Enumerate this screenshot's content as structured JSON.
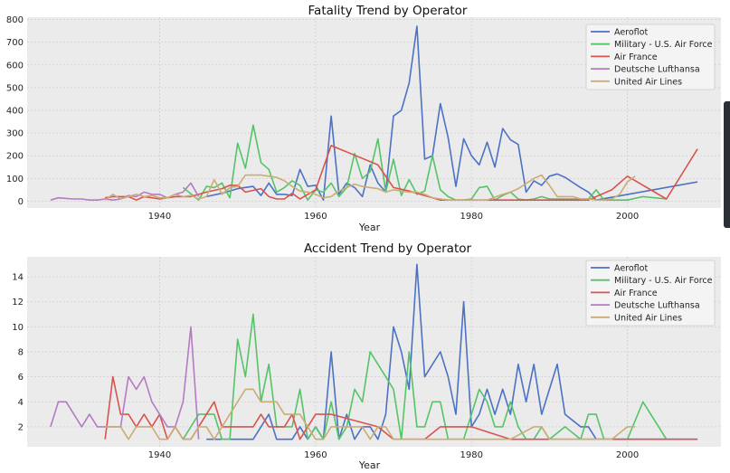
{
  "chart_data": [
    {
      "type": "line",
      "title": "Fatality Trend by Operator",
      "xlabel": "Year",
      "ylabel": "",
      "xlim": [
        1923,
        2012
      ],
      "ylim": [
        -30,
        810
      ],
      "xticks": [
        1940,
        1960,
        1980,
        2000
      ],
      "yticks": [
        0,
        100,
        200,
        300,
        400,
        500,
        600,
        700,
        800
      ],
      "grid": true,
      "legend": "top-right",
      "series": [
        {
          "name": "Aeroflot",
          "color": "#4c72c4",
          "x": [
            1946,
            1948,
            1950,
            1952,
            1953,
            1954,
            1955,
            1956,
            1957,
            1958,
            1959,
            1960,
            1961,
            1962,
            1963,
            1964,
            1965,
            1966,
            1967,
            1968,
            1969,
            1970,
            1971,
            1972,
            1973,
            1974,
            1975,
            1976,
            1977,
            1978,
            1979,
            1980,
            1981,
            1982,
            1983,
            1984,
            1985,
            1986,
            1987,
            1988,
            1989,
            1990,
            1991,
            1992,
            1994,
            1995,
            1996,
            2009
          ],
          "y": [
            20,
            35,
            55,
            65,
            25,
            80,
            30,
            30,
            25,
            140,
            65,
            70,
            5,
            375,
            30,
            80,
            60,
            20,
            160,
            80,
            40,
            375,
            400,
            520,
            770,
            185,
            200,
            430,
            280,
            65,
            275,
            200,
            160,
            260,
            150,
            320,
            270,
            250,
            40,
            90,
            70,
            110,
            120,
            105,
            60,
            40,
            5,
            85
          ]
        },
        {
          "name": "Military - U.S. Air Force",
          "color": "#55c467",
          "x": [
            1943,
            1945,
            1946,
            1947,
            1948,
            1949,
            1950,
            1951,
            1952,
            1953,
            1954,
            1955,
            1956,
            1957,
            1958,
            1959,
            1960,
            1961,
            1962,
            1963,
            1964,
            1965,
            1966,
            1967,
            1968,
            1969,
            1970,
            1971,
            1972,
            1973,
            1974,
            1975,
            1976,
            1977,
            1978,
            1979,
            1980,
            1981,
            1982,
            1983,
            1984,
            1985,
            1986,
            1987,
            1988,
            1989,
            1990,
            1995,
            1996,
            1997,
            2000,
            2002,
            2005
          ],
          "y": [
            60,
            5,
            65,
            60,
            80,
            15,
            255,
            145,
            335,
            170,
            140,
            40,
            60,
            90,
            70,
            5,
            50,
            40,
            80,
            20,
            60,
            210,
            100,
            130,
            275,
            40,
            185,
            25,
            95,
            30,
            45,
            200,
            50,
            20,
            5,
            5,
            10,
            60,
            65,
            5,
            25,
            40,
            10,
            5,
            10,
            20,
            10,
            10,
            50,
            5,
            5,
            20,
            10
          ]
        },
        {
          "name": "Air France",
          "color": "#d9534f",
          "x": [
            1933,
            1934,
            1936,
            1937,
            1938,
            1940,
            1942,
            1944,
            1946,
            1948,
            1949,
            1950,
            1951,
            1953,
            1954,
            1955,
            1956,
            1957,
            1958,
            1959,
            1960,
            1962,
            1968,
            1970,
            1972,
            1974,
            1976,
            1980,
            1985,
            1995,
            1998,
            2000,
            2005,
            2009
          ],
          "y": [
            15,
            20,
            20,
            5,
            20,
            10,
            20,
            20,
            40,
            55,
            70,
            70,
            40,
            55,
            20,
            10,
            10,
            35,
            10,
            30,
            50,
            245,
            160,
            60,
            45,
            25,
            5,
            5,
            5,
            5,
            50,
            110,
            10,
            230
          ]
        },
        {
          "name": "Deutsche Lufthansa",
          "color": "#b57ac4",
          "x": [
            1926,
            1927,
            1928,
            1929,
            1930,
            1931,
            1932,
            1933,
            1934,
            1935,
            1936,
            1937,
            1938,
            1939,
            1940,
            1941,
            1942,
            1943,
            1944,
            1945
          ],
          "y": [
            5,
            15,
            12,
            10,
            10,
            5,
            5,
            10,
            5,
            10,
            25,
            20,
            40,
            30,
            30,
            15,
            30,
            40,
            80,
            20
          ]
        },
        {
          "name": "United Air Lines",
          "color": "#c9ad74",
          "x": [
            1933,
            1934,
            1935,
            1936,
            1937,
            1938,
            1939,
            1940,
            1941,
            1942,
            1943,
            1944,
            1945,
            1946,
            1947,
            1948,
            1949,
            1950,
            1951,
            1952,
            1953,
            1954,
            1955,
            1956,
            1957,
            1958,
            1959,
            1960,
            1961,
            1962,
            1963,
            1964,
            1965,
            1966,
            1967,
            1968,
            1969,
            1970,
            1971,
            1972,
            1973,
            1974,
            1975,
            1976,
            1977,
            1978,
            1979,
            1980,
            1982,
            1984,
            1985,
            1986,
            1988,
            1989,
            1990,
            1991,
            1992,
            1993,
            1994,
            1995,
            1996,
            1997,
            1998,
            1999,
            2000,
            2001
          ],
          "y": [
            5,
            30,
            10,
            20,
            30,
            20,
            25,
            15,
            15,
            30,
            20,
            25,
            10,
            20,
            95,
            30,
            60,
            65,
            115,
            115,
            115,
            110,
            105,
            90,
            65,
            45,
            40,
            30,
            15,
            20,
            45,
            60,
            75,
            65,
            60,
            55,
            40,
            50,
            45,
            40,
            40,
            30,
            15,
            10,
            5,
            5,
            5,
            5,
            5,
            30,
            40,
            55,
            100,
            115,
            70,
            20,
            20,
            20,
            10,
            10,
            5,
            5,
            10,
            30,
            85,
            110
          ]
        }
      ]
    },
    {
      "type": "line",
      "title": "Accident Trend by Operator",
      "xlabel": "Year",
      "ylabel": "",
      "xlim": [
        1923,
        2012
      ],
      "ylim": [
        0.4,
        15.6
      ],
      "xticks": [
        1940,
        1960,
        1980,
        2000
      ],
      "yticks": [
        2,
        4,
        6,
        8,
        10,
        12,
        14
      ],
      "grid": true,
      "legend": "top-right",
      "series": [
        {
          "name": "Aeroflot",
          "color": "#4c72c4",
          "x": [
            1946,
            1948,
            1950,
            1952,
            1953,
            1954,
            1955,
            1956,
            1957,
            1958,
            1959,
            1960,
            1961,
            1962,
            1963,
            1964,
            1965,
            1966,
            1967,
            1968,
            1969,
            1970,
            1971,
            1972,
            1973,
            1974,
            1975,
            1976,
            1977,
            1978,
            1979,
            1980,
            1981,
            1982,
            1983,
            1984,
            1985,
            1986,
            1987,
            1988,
            1989,
            1990,
            1991,
            1992,
            1994,
            1995,
            1996,
            2009
          ],
          "y": [
            1,
            1,
            1,
            1,
            2,
            3,
            1,
            1,
            1,
            2,
            1,
            2,
            1,
            8,
            1,
            3,
            1,
            2,
            2,
            1,
            3,
            10,
            8,
            5,
            15,
            6,
            7,
            8,
            6,
            3,
            12,
            2,
            3,
            5,
            3,
            5,
            3,
            7,
            4,
            7,
            3,
            5,
            7,
            3,
            2,
            2,
            1,
            1
          ]
        },
        {
          "name": "Military - U.S. Air Force",
          "color": "#55c467",
          "x": [
            1943,
            1945,
            1946,
            1947,
            1948,
            1949,
            1950,
            1951,
            1952,
            1953,
            1954,
            1955,
            1956,
            1957,
            1958,
            1959,
            1960,
            1961,
            1962,
            1963,
            1964,
            1965,
            1966,
            1967,
            1968,
            1969,
            1970,
            1971,
            1972,
            1973,
            1974,
            1975,
            1976,
            1977,
            1978,
            1979,
            1980,
            1981,
            1982,
            1983,
            1984,
            1985,
            1986,
            1987,
            1988,
            1989,
            1990,
            1992,
            1994,
            1995,
            1996,
            1997,
            2000,
            2002,
            2005
          ],
          "y": [
            1,
            3,
            3,
            3,
            1,
            1,
            9,
            6,
            11,
            4,
            7,
            2,
            2,
            2,
            5,
            1,
            2,
            1,
            4,
            1,
            2,
            5,
            4,
            8,
            7,
            6,
            5,
            1,
            8,
            2,
            2,
            4,
            4,
            1,
            1,
            1,
            3,
            5,
            4,
            2,
            2,
            4,
            2,
            1,
            1,
            2,
            1,
            2,
            1,
            3,
            3,
            1,
            1,
            4,
            1
          ]
        },
        {
          "name": "Air France",
          "color": "#d9534f",
          "x": [
            1933,
            1934,
            1935,
            1936,
            1937,
            1938,
            1939,
            1940,
            1941,
            1942,
            1943,
            1944,
            1945,
            1946,
            1947,
            1948,
            1949,
            1950,
            1951,
            1952,
            1953,
            1954,
            1955,
            1956,
            1957,
            1958,
            1959,
            1960,
            1962,
            1968,
            1970,
            1972,
            1974,
            1976,
            1980,
            1985,
            1990,
            1995,
            1998,
            2000,
            2005,
            2009
          ],
          "y": [
            1,
            6,
            3,
            3,
            2,
            3,
            2,
            3,
            1,
            2,
            1,
            1,
            2,
            3,
            4,
            2,
            2,
            2,
            2,
            2,
            3,
            2,
            2,
            2,
            3,
            1,
            2,
            3,
            3,
            2,
            1,
            1,
            1,
            2,
            2,
            1,
            1,
            1,
            1,
            1,
            1,
            1
          ]
        },
        {
          "name": "Deutsche Lufthansa",
          "color": "#b57ac4",
          "x": [
            1926,
            1927,
            1928,
            1929,
            1930,
            1931,
            1932,
            1933,
            1934,
            1935,
            1936,
            1937,
            1938,
            1939,
            1940,
            1941,
            1942,
            1943,
            1944,
            1945
          ],
          "y": [
            2,
            4,
            4,
            3,
            2,
            3,
            2,
            2,
            2,
            2,
            6,
            5,
            6,
            4,
            3,
            2,
            2,
            4,
            10,
            1
          ]
        },
        {
          "name": "United Air Lines",
          "color": "#c9ad74",
          "x": [
            1933,
            1934,
            1935,
            1936,
            1937,
            1938,
            1939,
            1940,
            1941,
            1942,
            1943,
            1944,
            1945,
            1946,
            1947,
            1948,
            1949,
            1950,
            1951,
            1952,
            1953,
            1954,
            1955,
            1956,
            1957,
            1958,
            1959,
            1960,
            1961,
            1962,
            1963,
            1964,
            1965,
            1966,
            1967,
            1968,
            1969,
            1970,
            1975,
            1980,
            1985,
            1988,
            1989,
            1990,
            1991,
            1995,
            1998,
            2000,
            2001
          ],
          "y": [
            2,
            2,
            2,
            1,
            2,
            2,
            2,
            1,
            1,
            2,
            1,
            1,
            2,
            2,
            1,
            2,
            3,
            4,
            5,
            5,
            4,
            4,
            4,
            3,
            3,
            3,
            2,
            1,
            1,
            2,
            2,
            2,
            2,
            2,
            1,
            2,
            2,
            1,
            1,
            1,
            1,
            2,
            2,
            1,
            1,
            1,
            1,
            2,
            2
          ]
        }
      ]
    }
  ]
}
